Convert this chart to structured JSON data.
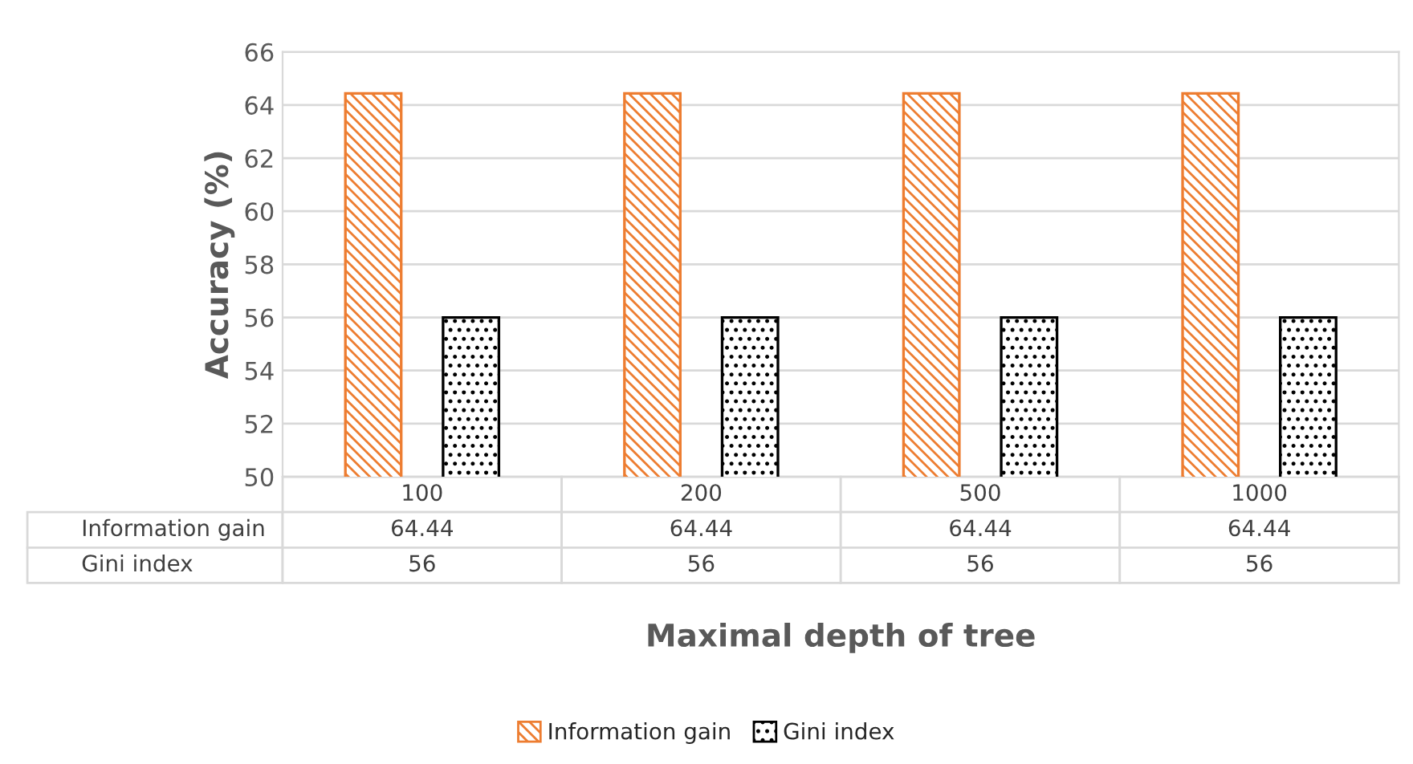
{
  "chart_data": {
    "type": "bar",
    "ylabel": "Accuracy (%)",
    "xlabel": "Maximal depth of tree",
    "categories": [
      "100",
      "200",
      "500",
      "1000"
    ],
    "series": [
      {
        "name": "Information gain",
        "color": "#ed7d31",
        "values": [
          64.44,
          64.44,
          64.44,
          64.44
        ]
      },
      {
        "name": "Gini index",
        "color": "#000000",
        "values": [
          56,
          56,
          56,
          56
        ]
      }
    ],
    "ylim": [
      50,
      66
    ],
    "yticks": [
      50,
      52,
      54,
      56,
      58,
      60,
      62,
      64,
      66
    ],
    "grid": "y",
    "data_labels": true,
    "legend": "bottom"
  }
}
